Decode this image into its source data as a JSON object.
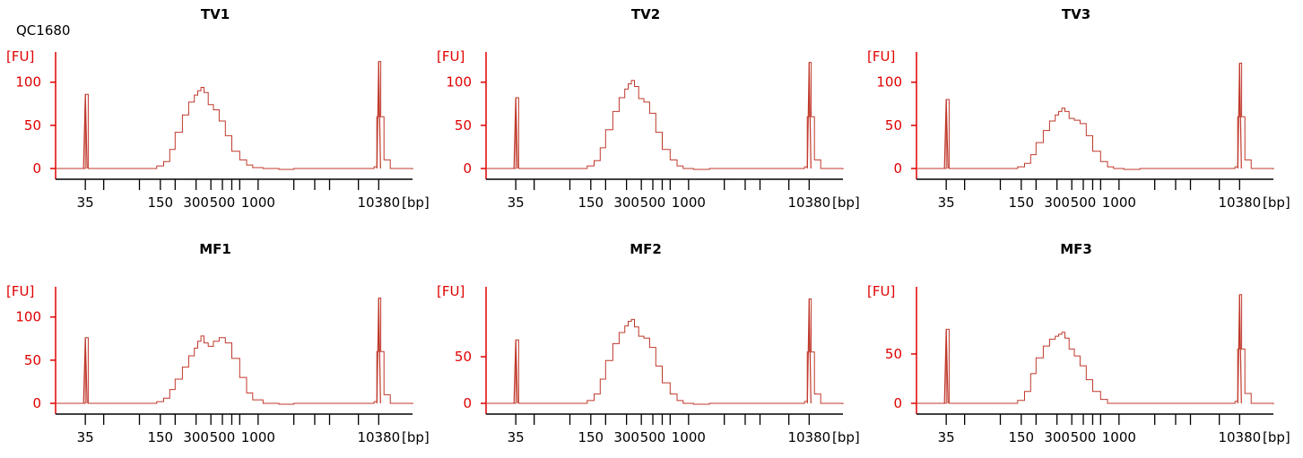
{
  "sample_id": "QC1680",
  "colors": {
    "trace": "#c0392b",
    "y_axis": "#e00000",
    "x_axis": "#000000"
  },
  "chart_data": [
    {
      "type": "line",
      "title": "TV1",
      "ylabel": "[FU]",
      "xlabel": "[bp]",
      "x_scale": "log",
      "x_tick_labels": [
        "35",
        "150",
        "300",
        "500",
        "1000",
        "10380"
      ],
      "x_minor_ticks": [
        35,
        50,
        100,
        150,
        200,
        300,
        400,
        500,
        600,
        700,
        1000,
        2000,
        3000,
        4000,
        7000,
        10380
      ],
      "ylim": [
        -5,
        135
      ],
      "yticks": [
        0,
        50,
        100
      ],
      "grid": false,
      "series": [
        {
          "marker_peaks": [
            {
              "x": 35,
              "y": 86
            },
            {
              "x": 10380,
              "y": 124
            }
          ],
          "x": [
            20,
            30,
            33,
            35,
            37,
            40,
            100,
            120,
            140,
            160,
            180,
            200,
            230,
            260,
            290,
            310,
            330,
            350,
            380,
            420,
            470,
            530,
            600,
            700,
            800,
            900,
            1100,
            1500,
            2000,
            3000,
            5000,
            8000,
            9500,
            10000,
            10380,
            10800,
            11500,
            13000,
            20000
          ],
          "y": [
            0,
            0,
            0,
            86,
            0,
            0,
            0,
            0,
            3,
            8,
            22,
            42,
            62,
            77,
            85,
            90,
            94,
            88,
            74,
            68,
            55,
            38,
            20,
            10,
            4,
            1,
            0,
            -1,
            0,
            0,
            0,
            0,
            2,
            60,
            124,
            60,
            10,
            0,
            -1
          ]
        }
      ]
    },
    {
      "type": "line",
      "title": "TV2",
      "ylabel": "[FU]",
      "xlabel": "[bp]",
      "x_scale": "log",
      "x_tick_labels": [
        "35",
        "150",
        "300",
        "500",
        "1000",
        "10380"
      ],
      "x_minor_ticks": [
        35,
        50,
        100,
        150,
        200,
        300,
        400,
        500,
        600,
        700,
        1000,
        2000,
        3000,
        4000,
        7000,
        10380
      ],
      "ylim": [
        -5,
        135
      ],
      "yticks": [
        0,
        50,
        100
      ],
      "grid": false,
      "series": [
        {
          "marker_peaks": [
            {
              "x": 35,
              "y": 82
            },
            {
              "x": 10380,
              "y": 123
            }
          ],
          "x": [
            20,
            30,
            33,
            35,
            37,
            40,
            100,
            120,
            140,
            160,
            180,
            200,
            230,
            260,
            290,
            310,
            330,
            350,
            380,
            420,
            470,
            530,
            600,
            700,
            800,
            900,
            1100,
            1500,
            2000,
            3000,
            5000,
            8000,
            9500,
            10000,
            10380,
            10800,
            11500,
            13000,
            20000
          ],
          "y": [
            0,
            0,
            0,
            82,
            0,
            0,
            0,
            0,
            3,
            9,
            24,
            45,
            66,
            82,
            92,
            98,
            102,
            95,
            81,
            77,
            64,
            42,
            22,
            10,
            3,
            0,
            -1,
            0,
            0,
            0,
            0,
            0,
            2,
            60,
            123,
            60,
            10,
            0,
            -1
          ]
        }
      ]
    },
    {
      "type": "line",
      "title": "TV3",
      "ylabel": "[FU]",
      "xlabel": "[bp]",
      "x_scale": "log",
      "x_tick_labels": [
        "35",
        "150",
        "300",
        "500",
        "1000",
        "10380"
      ],
      "x_minor_ticks": [
        35,
        50,
        100,
        150,
        200,
        300,
        400,
        500,
        600,
        700,
        1000,
        2000,
        3000,
        4000,
        7000,
        10380
      ],
      "ylim": [
        -5,
        135
      ],
      "yticks": [
        0,
        50,
        100
      ],
      "grid": false,
      "series": [
        {
          "marker_peaks": [
            {
              "x": 35,
              "y": 80
            },
            {
              "x": 10380,
              "y": 122
            }
          ],
          "x": [
            20,
            30,
            33,
            35,
            37,
            40,
            100,
            120,
            140,
            160,
            180,
            200,
            230,
            260,
            290,
            310,
            330,
            350,
            380,
            420,
            470,
            530,
            600,
            700,
            800,
            900,
            1100,
            1500,
            2000,
            3000,
            5000,
            8000,
            9500,
            10000,
            10380,
            10800,
            11500,
            13000,
            20000
          ],
          "y": [
            0,
            0,
            0,
            80,
            0,
            0,
            0,
            0,
            2,
            6,
            16,
            30,
            44,
            55,
            62,
            66,
            70,
            66,
            58,
            56,
            52,
            38,
            20,
            8,
            2,
            0,
            -1,
            0,
            0,
            0,
            0,
            0,
            2,
            60,
            122,
            60,
            10,
            0,
            -1
          ]
        }
      ]
    },
    {
      "type": "line",
      "title": "MF1",
      "ylabel": "[FU]",
      "xlabel": "[bp]",
      "x_scale": "log",
      "x_tick_labels": [
        "35",
        "150",
        "300",
        "500",
        "1000",
        "10380"
      ],
      "x_minor_ticks": [
        35,
        50,
        100,
        150,
        200,
        300,
        400,
        500,
        600,
        700,
        1000,
        2000,
        3000,
        4000,
        7000,
        10380
      ],
      "ylim": [
        -5,
        135
      ],
      "yticks": [
        0,
        50,
        100
      ],
      "grid": false,
      "series": [
        {
          "marker_peaks": [
            {
              "x": 35,
              "y": 76
            },
            {
              "x": 10380,
              "y": 122
            }
          ],
          "x": [
            20,
            30,
            33,
            35,
            37,
            40,
            100,
            120,
            140,
            160,
            180,
            200,
            230,
            260,
            290,
            310,
            330,
            350,
            380,
            420,
            470,
            530,
            600,
            700,
            800,
            900,
            1100,
            1500,
            2000,
            3000,
            5000,
            8000,
            9500,
            10000,
            10380,
            10800,
            11500,
            13000,
            20000
          ],
          "y": [
            0,
            0,
            0,
            76,
            0,
            0,
            0,
            0,
            2,
            6,
            16,
            28,
            42,
            55,
            64,
            72,
            78,
            70,
            66,
            72,
            76,
            70,
            52,
            30,
            12,
            4,
            0,
            -1,
            0,
            0,
            0,
            0,
            2,
            60,
            122,
            60,
            10,
            0,
            -1
          ]
        }
      ]
    },
    {
      "type": "line",
      "title": "MF2",
      "ylabel": "[FU]",
      "xlabel": "[bp]",
      "x_scale": "log",
      "x_tick_labels": [
        "35",
        "150",
        "300",
        "500",
        "1000",
        "10380"
      ],
      "x_minor_ticks": [
        35,
        50,
        100,
        150,
        200,
        300,
        400,
        500,
        600,
        700,
        1000,
        2000,
        3000,
        4000,
        7000,
        10380
      ],
      "ylim": [
        -5,
        125
      ],
      "yticks": [
        0,
        50
      ],
      "grid": false,
      "series": [
        {
          "marker_peaks": [
            {
              "x": 35,
              "y": 68
            },
            {
              "x": 10380,
              "y": 112
            }
          ],
          "x": [
            20,
            30,
            33,
            35,
            37,
            40,
            100,
            120,
            140,
            160,
            180,
            200,
            230,
            260,
            290,
            310,
            330,
            350,
            380,
            420,
            470,
            530,
            600,
            700,
            800,
            900,
            1100,
            1500,
            2000,
            3000,
            5000,
            8000,
            9500,
            10000,
            10380,
            10800,
            11500,
            13000,
            20000
          ],
          "y": [
            0,
            0,
            0,
            68,
            0,
            0,
            0,
            0,
            3,
            10,
            26,
            46,
            64,
            76,
            83,
            88,
            90,
            82,
            72,
            70,
            60,
            40,
            22,
            10,
            3,
            0,
            -1,
            0,
            0,
            0,
            0,
            0,
            2,
            55,
            112,
            55,
            10,
            0,
            -1
          ]
        }
      ]
    },
    {
      "type": "line",
      "title": "MF3",
      "ylabel": "[FU]",
      "xlabel": "[bp]",
      "x_scale": "log",
      "x_tick_labels": [
        "35",
        "150",
        "300",
        "500",
        "1000",
        "10380"
      ],
      "x_minor_ticks": [
        35,
        50,
        100,
        150,
        200,
        300,
        400,
        500,
        600,
        700,
        1000,
        2000,
        3000,
        4000,
        7000,
        10380
      ],
      "ylim": [
        -5,
        118
      ],
      "yticks": [
        0,
        50
      ],
      "grid": false,
      "series": [
        {
          "marker_peaks": [
            {
              "x": 35,
              "y": 75
            },
            {
              "x": 10380,
              "y": 110
            }
          ],
          "x": [
            20,
            30,
            33,
            35,
            37,
            40,
            100,
            120,
            140,
            160,
            180,
            200,
            230,
            260,
            290,
            310,
            330,
            350,
            380,
            420,
            470,
            530,
            600,
            700,
            800,
            900,
            1100,
            1500,
            2000,
            3000,
            5000,
            8000,
            9500,
            10000,
            10380,
            10800,
            11500,
            13000,
            20000
          ],
          "y": [
            0,
            0,
            0,
            75,
            0,
            0,
            0,
            0,
            3,
            12,
            30,
            46,
            58,
            65,
            68,
            70,
            72,
            66,
            55,
            48,
            38,
            24,
            12,
            4,
            0,
            0,
            0,
            0,
            0,
            0,
            0,
            0,
            2,
            55,
            110,
            55,
            10,
            0,
            -1
          ]
        }
      ]
    }
  ]
}
